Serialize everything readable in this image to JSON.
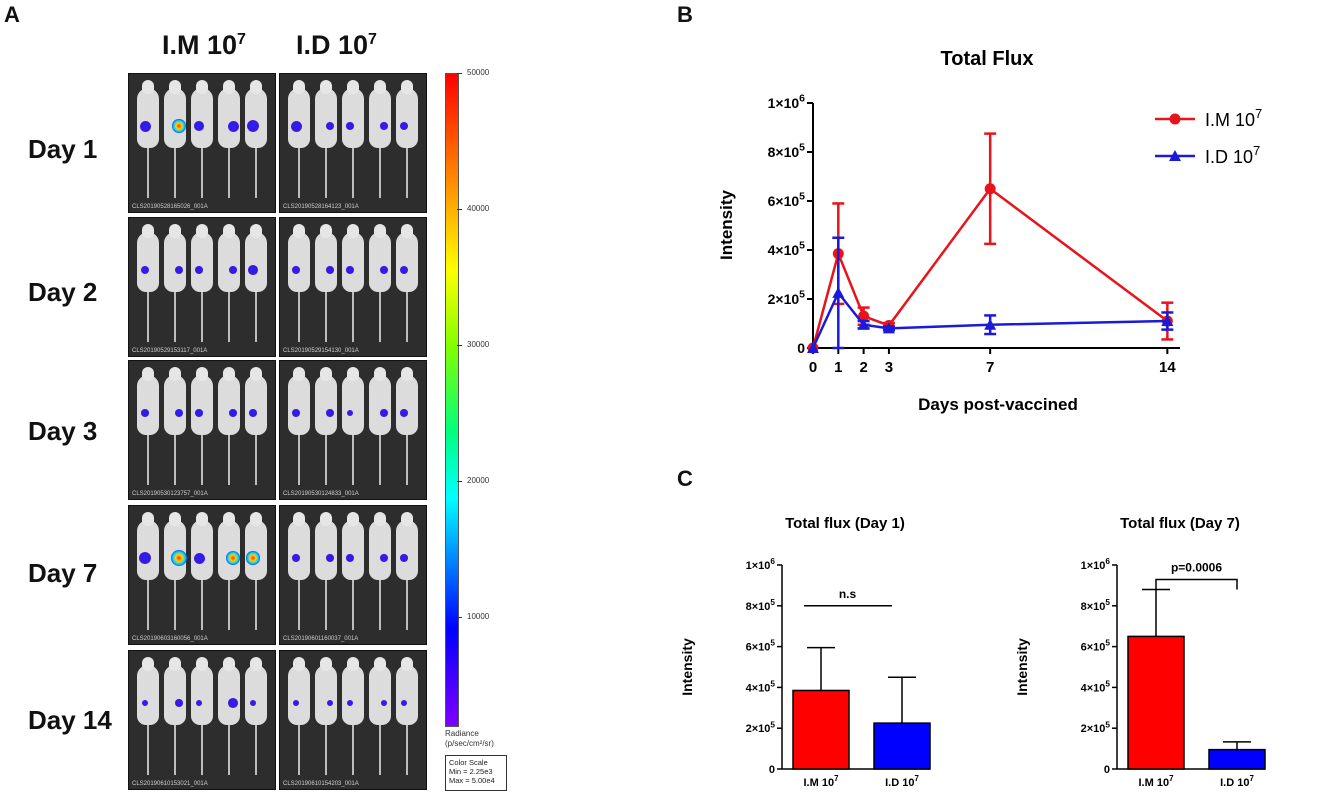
{
  "panels": {
    "a": "A",
    "b": "B",
    "c": "C"
  },
  "imaging": {
    "columns": [
      "I.M 10",
      "I.D 10"
    ],
    "column_sup": "7",
    "rows": [
      {
        "label": "Day 1",
        "ids": [
          "CLS20190528165026_001A",
          "CLS20190528164123_001A"
        ]
      },
      {
        "label": "Day 2",
        "ids": [
          "CLS20190529153117_001A",
          "CLS20190529154130_001A"
        ]
      },
      {
        "label": "Day 3",
        "ids": [
          "CLS20190530123757_001A",
          "CLS20190530124833_001A"
        ]
      },
      {
        "label": "Day 7",
        "ids": [
          "CLS20190603160056_001A",
          "CLS20190601160037_001A"
        ]
      },
      {
        "label": "Day 14",
        "ids": [
          "CLS20190610153021_001A",
          "CLS20190610154203_001A"
        ]
      }
    ],
    "colorbar": {
      "ticks": [
        "50000",
        "40000",
        "30000",
        "20000",
        "10000"
      ],
      "radiance_label": "Radiance",
      "radiance_unit": "(p/sec/cm²/sr)",
      "scale_title": "Color Scale",
      "scale_min": "Min = 2.25e3",
      "scale_max": "Max = 5.00e4"
    }
  },
  "chart_data": [
    {
      "type": "line",
      "panel": "B",
      "title": "Total Flux",
      "xlabel": "Days post-vaccined",
      "ylabel": "Intensity",
      "x": [
        0,
        1,
        2,
        3,
        7,
        14
      ],
      "x_ticks": [
        "0",
        "1",
        "2",
        "3",
        "7",
        "14"
      ],
      "xlim": [
        0,
        14.5
      ],
      "ylim": [
        0,
        1000000
      ],
      "y_ticks": [
        {
          "base": "0",
          "exp": ""
        },
        {
          "base": "2×10",
          "exp": "5"
        },
        {
          "base": "4×10",
          "exp": "5"
        },
        {
          "base": "6×10",
          "exp": "5"
        },
        {
          "base": "8×10",
          "exp": "5"
        },
        {
          "base": "1×10",
          "exp": "6"
        }
      ],
      "series": [
        {
          "name": "I.M 10",
          "sup": "7",
          "color": "#e8141c",
          "marker": "circle",
          "values": [
            0,
            385000,
            130000,
            92000,
            650000,
            110000
          ],
          "errors": [
            0,
            205000,
            35000,
            10000,
            225000,
            75000
          ]
        },
        {
          "name": "I.D 10",
          "sup": "7",
          "color": "#1a1ad8",
          "marker": "triangle",
          "values": [
            0,
            225000,
            95000,
            80000,
            95000,
            110000
          ],
          "errors": [
            0,
            225000,
            15000,
            8000,
            38000,
            35000
          ]
        }
      ]
    },
    {
      "type": "bar",
      "panel": "C-left",
      "title": "Total flux (Day 1)",
      "ylabel": "Intensity",
      "categories": [
        "I.M 10",
        "I.D 10"
      ],
      "category_sup": "7",
      "values": [
        385000,
        225000
      ],
      "errors": [
        210000,
        225000
      ],
      "colors": [
        "#ff0000",
        "#0000ff"
      ],
      "ylim": [
        0,
        1000000
      ],
      "significance": "n.s",
      "y_ticks": [
        {
          "base": "0",
          "exp": ""
        },
        {
          "base": "2×10",
          "exp": "5"
        },
        {
          "base": "4×10",
          "exp": "5"
        },
        {
          "base": "6×10",
          "exp": "5"
        },
        {
          "base": "8×10",
          "exp": "5"
        },
        {
          "base": "1×10",
          "exp": "6"
        }
      ]
    },
    {
      "type": "bar",
      "panel": "C-right",
      "title": "Total flux (Day 7)",
      "ylabel": "Intensity",
      "categories": [
        "I.M 10",
        "I.D 10"
      ],
      "category_sup": "7",
      "values": [
        650000,
        95000
      ],
      "errors": [
        230000,
        38000
      ],
      "colors": [
        "#ff0000",
        "#0000ff"
      ],
      "ylim": [
        0,
        1000000
      ],
      "significance": "p=0.0006",
      "y_ticks": [
        {
          "base": "0",
          "exp": ""
        },
        {
          "base": "2×10",
          "exp": "5"
        },
        {
          "base": "4×10",
          "exp": "5"
        },
        {
          "base": "6×10",
          "exp": "5"
        },
        {
          "base": "8×10",
          "exp": "5"
        },
        {
          "base": "1×10",
          "exp": "6"
        }
      ]
    }
  ]
}
